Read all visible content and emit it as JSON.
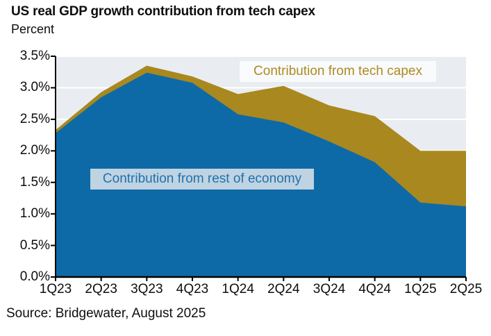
{
  "header": {
    "title": "US real GDP growth contribution from tech capex",
    "subtitle": "Percent"
  },
  "footer": {
    "source": "Source: Bridgewater, August 2025"
  },
  "colors": {
    "rest_of_economy_fill": "#0E6AA6",
    "tech_capex_fill": "#A9881F",
    "plot_background": "#E9EDF1",
    "gridline": "#FFFFFF",
    "axis": "#000000",
    "rest_label_bg": "#BFD3E2",
    "rest_label_text": "#1F72AC",
    "tech_label_bg": "#F9FAFB",
    "tech_label_text": "#AC8B24",
    "text": "#0d0d0d"
  },
  "annotations": {
    "tech_label": "Contribution from tech capex",
    "rest_label": "Contribution from rest of economy"
  },
  "chart_data": {
    "type": "area",
    "stacked": true,
    "title": "US real GDP growth contribution from tech capex",
    "ylabel": "Percent",
    "xlabel": "",
    "grid": true,
    "legend_position": "in-plot text labels",
    "categories": [
      "1Q23",
      "2Q23",
      "3Q23",
      "4Q23",
      "1Q24",
      "2Q24",
      "3Q24",
      "4Q24",
      "1Q25",
      "2Q25"
    ],
    "series": [
      {
        "name": "Contribution from rest of economy",
        "values": [
          2.28,
          2.85,
          3.24,
          3.08,
          2.58,
          2.45,
          2.15,
          1.82,
          1.18,
          1.12
        ]
      },
      {
        "name": "Contribution from tech capex",
        "values": [
          0.05,
          0.08,
          0.11,
          0.1,
          0.32,
          0.58,
          0.57,
          0.73,
          0.82,
          0.88
        ]
      }
    ],
    "stacked_totals": [
      2.33,
      2.93,
      3.35,
      3.18,
      2.9,
      3.03,
      2.72,
      2.55,
      2.0,
      2.0
    ],
    "ylim": [
      0,
      3.5
    ],
    "y_tick_step": 0.5,
    "y_tick_labels": [
      "0.0%",
      "0.5%",
      "1.0%",
      "1.5%",
      "2.0%",
      "2.5%",
      "3.0%",
      "3.5%"
    ]
  }
}
